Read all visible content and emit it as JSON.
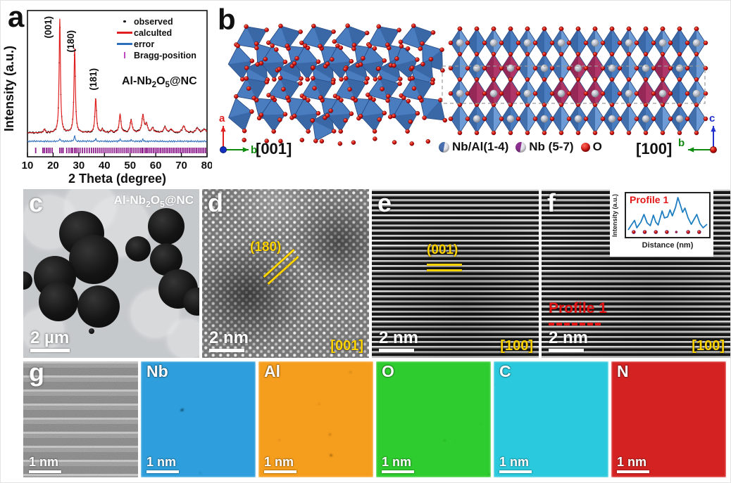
{
  "colors": {
    "observed": "#111111",
    "calculated": "#e02020",
    "error": "#2e6fbd",
    "bragg": "#8e1d8e",
    "annotation_yellow": "#ffd400",
    "profile_red": "#e01212",
    "profile_line": "#1f7ec2",
    "polyhedra_blue": "#4a7cc0",
    "polyhedra_blue_dark": "#3a63a6",
    "polyhedra_pink": "#b03668",
    "oxygen_red": "#cf1010",
    "nb_al_sphere": "#4a6fae",
    "nb_sphere": "#8c3090"
  },
  "panel_a": {
    "label": "a",
    "xlabel": "2 Theta (degree)",
    "ylabel": "Intensity (a.u.)",
    "sample_parts": [
      "Al-Nb",
      "2",
      "O",
      "5",
      "@NC"
    ],
    "legend": [
      {
        "label": "observed",
        "marker": "dot"
      },
      {
        "label": "calculted",
        "marker": "line"
      },
      {
        "label": "error",
        "marker": "line"
      },
      {
        "label": "Bragg-position",
        "marker": "tick"
      }
    ],
    "peak_labels": [
      "(001)",
      "(180)",
      "(181)"
    ]
  },
  "chart_data": [
    {
      "type": "line",
      "title": "XRD Rietveld refinement of Al-Nb2O5@NC",
      "xlabel": "2 Theta (degree)",
      "ylabel": "Intensity (a.u.)",
      "xlim": [
        10,
        80
      ],
      "xticks": [
        10,
        20,
        30,
        40,
        50,
        60,
        70,
        80
      ],
      "grid": false,
      "legend_position": "top-right",
      "series_names": [
        "observed",
        "calculted",
        "error",
        "Bragg-position"
      ],
      "peaks": [
        {
          "two_theta": 16.6,
          "rel_intensity": 3,
          "width": 0.35
        },
        {
          "two_theta": 22.6,
          "rel_intensity": 100,
          "width": 0.3,
          "hkl": "(001)"
        },
        {
          "two_theta": 28.4,
          "rel_intensity": 74,
          "width": 0.32,
          "hkl": "(180)"
        },
        {
          "two_theta": 36.6,
          "rel_intensity": 30,
          "width": 0.36,
          "hkl": "(181)"
        },
        {
          "two_theta": 39.2,
          "rel_intensity": 3,
          "width": 0.4
        },
        {
          "two_theta": 42.5,
          "rel_intensity": 2,
          "width": 0.4
        },
        {
          "two_theta": 46.1,
          "rel_intensity": 16,
          "width": 0.42
        },
        {
          "two_theta": 50.4,
          "rel_intensity": 11,
          "width": 0.48
        },
        {
          "two_theta": 55.0,
          "rel_intensity": 15,
          "width": 0.5
        },
        {
          "two_theta": 56.4,
          "rel_intensity": 7,
          "width": 0.5
        },
        {
          "two_theta": 58.8,
          "rel_intensity": 4,
          "width": 0.5
        },
        {
          "two_theta": 63.6,
          "rel_intensity": 5,
          "width": 0.6
        },
        {
          "two_theta": 66.0,
          "rel_intensity": 3,
          "width": 0.6
        },
        {
          "two_theta": 70.9,
          "rel_intensity": 6,
          "width": 0.65
        },
        {
          "two_theta": 76.2,
          "rel_intensity": 4,
          "width": 0.7
        },
        {
          "two_theta": 79.0,
          "rel_intensity": 3,
          "width": 0.7
        }
      ],
      "error_spikes": [
        {
          "two_theta": 22.6,
          "h": 4
        },
        {
          "two_theta": 28.4,
          "h": 9
        },
        {
          "two_theta": 36.6,
          "h": 4
        },
        {
          "two_theta": 46.1,
          "h": 3
        },
        {
          "two_theta": 50.4,
          "h": 2.5
        },
        {
          "two_theta": 55.0,
          "h": 3
        }
      ],
      "bragg_positions": [
        13.2,
        16.0,
        16.6,
        17.4,
        18.1,
        18.8,
        19.6,
        22.6,
        23.3,
        23.9,
        25.3,
        26.2,
        27.0,
        27.6,
        28.4,
        29.0,
        29.7,
        30.5,
        31.4,
        32.3,
        33.2,
        34.1,
        35.0,
        35.8,
        36.6,
        37.4,
        38.2,
        39.0,
        39.8,
        40.6,
        41.4,
        42.2,
        43.0,
        43.8,
        44.6,
        45.3,
        46.1,
        46.9,
        47.7,
        48.5,
        49.2,
        50.0,
        50.7,
        51.5,
        52.3,
        53.1,
        53.9,
        54.6,
        55.0,
        55.8,
        56.4,
        57.0,
        57.7,
        58.4,
        59.1,
        59.8,
        60.5,
        61.2,
        61.9,
        62.6,
        63.3,
        64.0,
        64.7,
        65.4,
        66.1,
        66.8,
        67.5,
        68.2,
        68.9,
        69.6,
        70.3,
        71.0,
        71.7,
        72.4,
        73.1,
        73.8,
        74.5,
        75.2,
        75.9,
        76.6,
        77.3,
        78.0,
        78.7,
        79.4
      ]
    },
    {
      "type": "line",
      "title": "Profile 1",
      "xlabel": "Distance (nm)",
      "ylabel": "Intensity (a.u.)",
      "points": [
        [
          0,
          8
        ],
        [
          4,
          22
        ],
        [
          8,
          35
        ],
        [
          11,
          14
        ],
        [
          16,
          30
        ],
        [
          20,
          52
        ],
        [
          24,
          28
        ],
        [
          28,
          20
        ],
        [
          32,
          50
        ],
        [
          35,
          30
        ],
        [
          38,
          22
        ],
        [
          43,
          62
        ],
        [
          46,
          42
        ],
        [
          50,
          45
        ],
        [
          53,
          65
        ],
        [
          56,
          48
        ],
        [
          60,
          72
        ],
        [
          63,
          100
        ],
        [
          66,
          80
        ],
        [
          69,
          58
        ],
        [
          72,
          70
        ],
        [
          76,
          42
        ],
        [
          80,
          24
        ],
        [
          84,
          40
        ],
        [
          87,
          52
        ],
        [
          91,
          26
        ],
        [
          95,
          14
        ],
        [
          100,
          24
        ]
      ],
      "marker_positions_x": [
        7,
        21,
        35,
        49,
        61,
        76,
        90
      ]
    }
  ],
  "panel_b": {
    "label": "b",
    "direction_left": "[001]",
    "direction_right": "[100]",
    "legend": [
      {
        "label": "Nb/Al(1-4)",
        "sphere": "blue-white"
      },
      {
        "label": "Nb (5-7)",
        "sphere": "purple-white"
      },
      {
        "label": "O",
        "sphere": "red"
      }
    ],
    "axes_left": {
      "vertical": "a",
      "horizontal": "b"
    },
    "axes_right": {
      "vertical": "c",
      "horizontal": "b"
    }
  },
  "panel_c": {
    "label": "c",
    "sample_parts": [
      "Al-Nb",
      "2",
      "O",
      "5",
      "@NC"
    ],
    "scalebar": "2 µm"
  },
  "panel_d": {
    "label": "d",
    "plane": "(180)",
    "zone": "[001]",
    "scalebar": "2 nm"
  },
  "panel_e": {
    "label": "e",
    "plane": "(001)",
    "zone": "[100]",
    "scalebar": "2 nm"
  },
  "panel_f": {
    "label": "f",
    "profile_tag": "Profile 1",
    "zone": "[100]",
    "scalebar": "2 nm",
    "inset": {
      "title": "Profile 1",
      "xlabel": "Distance (nm)",
      "ylabel": "Intensity (a.u.)"
    }
  },
  "panel_g": {
    "label": "g",
    "scalebar": "1 nm",
    "maps": [
      {
        "label": "Nb",
        "scalebar": "1 nm",
        "mid": "#0d3d5e",
        "bright": "#2e9fdc"
      },
      {
        "label": "Al",
        "scalebar": "1 nm",
        "mid": "#8f5200",
        "bright": "#f59d1a"
      },
      {
        "label": "O",
        "scalebar": "1 nm",
        "mid": "#0f7a10",
        "bright": "#2ecc2e"
      },
      {
        "label": "C",
        "scalebar": "1 nm",
        "mid": "#0b7f93",
        "bright": "#2cc9dd"
      },
      {
        "label": "N",
        "scalebar": "1 nm",
        "mid": "#8f0f0f",
        "bright": "#d42222"
      }
    ]
  }
}
